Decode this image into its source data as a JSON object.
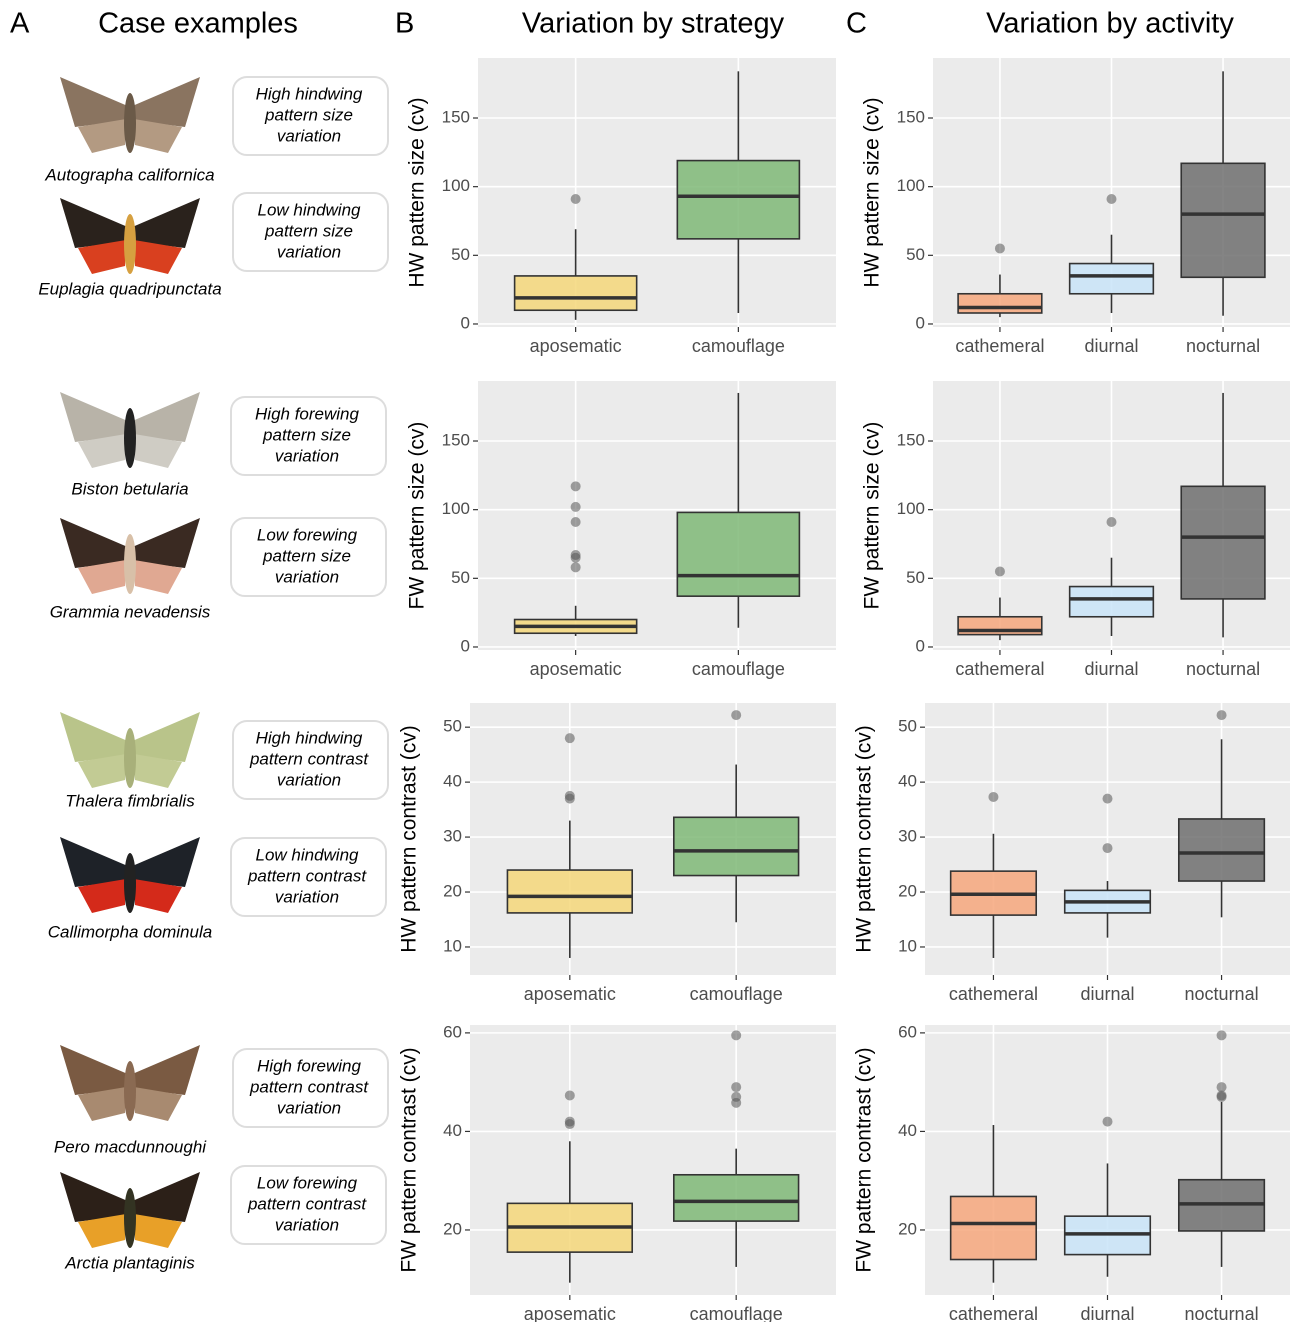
{
  "case_examples": {
    "letter": "A",
    "title": "Case examples",
    "items": [
      {
        "species": "Autographa californica",
        "label_lines": [
          "High hindwing",
          "pattern size",
          "variation"
        ]
      },
      {
        "species": "Euplagia quadripunctata",
        "label_lines": [
          "Low hindwing",
          "pattern size",
          "variation"
        ]
      },
      {
        "species": "Biston betularia",
        "label_lines": [
          "High forewing",
          "pattern size",
          "variation"
        ]
      },
      {
        "species": "Grammia nevadensis",
        "label_lines": [
          "Low forewing",
          "pattern size",
          "variation"
        ]
      },
      {
        "species": "Thalera fimbrialis",
        "label_lines": [
          "High hindwing",
          "pattern contrast",
          "variation"
        ]
      },
      {
        "species": "Callimorpha dominula",
        "label_lines": [
          "Low hindwing",
          "pattern contrast",
          "variation"
        ]
      },
      {
        "species": "Pero macdunnoughi",
        "label_lines": [
          "High forewing",
          "pattern contrast",
          "variation"
        ]
      },
      {
        "species": "Arctia plantaginis",
        "label_lines": [
          "Low forewing",
          "pattern contrast",
          "variation"
        ]
      }
    ]
  },
  "panels": [
    {
      "letter": "B",
      "title": "Variation by strategy"
    },
    {
      "letter": "C",
      "title": "Variation by activity"
    }
  ],
  "chart_data": [
    {
      "type": "box",
      "y_label": "HW pattern size (cv)",
      "categories": [
        "aposematic",
        "camouflage"
      ],
      "colors": [
        "#f5d77a",
        "#7fb877"
      ],
      "boxes": [
        {
          "min": 3,
          "q1": 10,
          "median": 19,
          "q3": 35,
          "max": 69,
          "outliers": [
            91
          ]
        },
        {
          "min": 8,
          "q1": 62,
          "median": 93,
          "q3": 119,
          "max": 184,
          "outliers": []
        }
      ],
      "ylim": [
        -2.2,
        193.7
      ],
      "yticks": [
        0,
        50,
        100,
        150
      ],
      "grid": true
    },
    {
      "type": "box",
      "y_label": "HW pattern size (cv)",
      "categories": [
        "cathemeral",
        "diurnal",
        "nocturnal"
      ],
      "colors": [
        "#f6a77c",
        "#c9e4f8",
        "#6e6e6e"
      ],
      "boxes": [
        {
          "min": 5,
          "q1": 8,
          "median": 12,
          "q3": 22,
          "max": 36,
          "outliers": [
            55
          ]
        },
        {
          "min": 8,
          "q1": 22,
          "median": 35,
          "q3": 44,
          "max": 65,
          "outliers": [
            91
          ]
        },
        {
          "min": 6,
          "q1": 34,
          "median": 80,
          "q3": 117,
          "max": 184,
          "outliers": []
        }
      ],
      "ylim": [
        -2.2,
        193.7
      ],
      "yticks": [
        0,
        50,
        100,
        150
      ],
      "grid": true
    },
    {
      "type": "box",
      "y_label": "FW pattern size (cv)",
      "categories": [
        "aposematic",
        "camouflage"
      ],
      "colors": [
        "#f5d77a",
        "#7fb877"
      ],
      "boxes": [
        {
          "min": 8,
          "q1": 10,
          "median": 15,
          "q3": 20,
          "max": 30,
          "outliers": [
            58,
            65,
            67,
            91,
            102,
            117
          ]
        },
        {
          "min": 14,
          "q1": 37,
          "median": 52,
          "q3": 98,
          "max": 185,
          "outliers": []
        }
      ],
      "ylim": [
        -2.2,
        193.7
      ],
      "yticks": [
        0,
        50,
        100,
        150
      ],
      "grid": true
    },
    {
      "type": "box",
      "y_label": "FW pattern size (cv)",
      "categories": [
        "cathemeral",
        "diurnal",
        "nocturnal"
      ],
      "colors": [
        "#f6a77c",
        "#c9e4f8",
        "#6e6e6e"
      ],
      "boxes": [
        {
          "min": 5,
          "q1": 9,
          "median": 12,
          "q3": 22,
          "max": 36,
          "outliers": [
            55
          ]
        },
        {
          "min": 8,
          "q1": 22,
          "median": 35,
          "q3": 44,
          "max": 65,
          "outliers": [
            91
          ]
        },
        {
          "min": 7,
          "q1": 35,
          "median": 80,
          "q3": 117,
          "max": 185,
          "outliers": []
        }
      ],
      "ylim": [
        -2.2,
        193.7
      ],
      "yticks": [
        0,
        50,
        100,
        150
      ],
      "grid": true
    },
    {
      "type": "box",
      "y_label": "HW pattern contrast (cv)",
      "categories": [
        "aposematic",
        "camouflage"
      ],
      "colors": [
        "#f5d77a",
        "#7fb877"
      ],
      "boxes": [
        {
          "min": 8,
          "q1": 16.2,
          "median": 19.2,
          "q3": 24,
          "max": 33,
          "outliers": [
            37,
            37.5,
            48
          ]
        },
        {
          "min": 14.5,
          "q1": 23,
          "median": 27.5,
          "q3": 33.6,
          "max": 43.2,
          "outliers": [
            52.2
          ]
        }
      ],
      "ylim": [
        4.9,
        54.4
      ],
      "yticks": [
        10,
        20,
        30,
        40,
        50
      ],
      "grid": true
    },
    {
      "type": "box",
      "y_label": "HW pattern contrast (cv)",
      "categories": [
        "cathemeral",
        "diurnal",
        "nocturnal"
      ],
      "colors": [
        "#f6a77c",
        "#c9e4f8",
        "#6e6e6e"
      ],
      "boxes": [
        {
          "min": 8,
          "q1": 15.8,
          "median": 19.6,
          "q3": 23.8,
          "max": 30.6,
          "outliers": [
            37.3
          ]
        },
        {
          "min": 11.7,
          "q1": 16.2,
          "median": 18.2,
          "q3": 20.3,
          "max": 22,
          "outliers": [
            28,
            37
          ]
        },
        {
          "min": 15.4,
          "q1": 22,
          "median": 27.1,
          "q3": 33.3,
          "max": 47.8,
          "outliers": [
            52.2
          ]
        }
      ],
      "ylim": [
        4.9,
        54.4
      ],
      "yticks": [
        10,
        20,
        30,
        40,
        50
      ],
      "grid": true
    },
    {
      "type": "box",
      "y_label": "FW pattern contrast (cv)",
      "categories": [
        "aposematic",
        "camouflage"
      ],
      "colors": [
        "#f5d77a",
        "#7fb877"
      ],
      "boxes": [
        {
          "min": 9.3,
          "q1": 15.5,
          "median": 20.6,
          "q3": 25.4,
          "max": 38,
          "outliers": [
            41.5,
            42,
            47.3
          ]
        },
        {
          "min": 12.5,
          "q1": 21.8,
          "median": 25.8,
          "q3": 31.2,
          "max": 36.5,
          "outliers": [
            45.8,
            47,
            49,
            59.5
          ]
        }
      ],
      "ylim": [
        6.8,
        61.6
      ],
      "yticks": [
        20,
        40,
        60
      ],
      "grid": true
    },
    {
      "type": "box",
      "y_label": "FW pattern contrast (cv)",
      "categories": [
        "cathemeral",
        "diurnal",
        "nocturnal"
      ],
      "colors": [
        "#f6a77c",
        "#c9e4f8",
        "#6e6e6e"
      ],
      "boxes": [
        {
          "min": 9.3,
          "q1": 14,
          "median": 21.3,
          "q3": 26.8,
          "max": 41.3,
          "outliers": []
        },
        {
          "min": 10.5,
          "q1": 15,
          "median": 19.2,
          "q3": 22.8,
          "max": 33.5,
          "outliers": [
            42
          ]
        },
        {
          "min": 12.5,
          "q1": 19.8,
          "median": 25.3,
          "q3": 30.2,
          "max": 46,
          "outliers": [
            47,
            47.3,
            49,
            59.5
          ]
        }
      ],
      "ylim": [
        6.8,
        61.6
      ],
      "yticks": [
        20,
        40,
        60
      ],
      "grid": true
    }
  ]
}
